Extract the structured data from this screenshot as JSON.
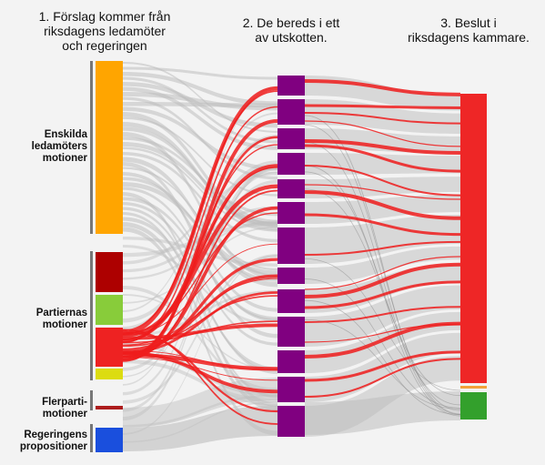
{
  "titles": {
    "col1": [
      "1. Förslag kommer från",
      "riksdagens ledamöter",
      "och regeringen"
    ],
    "col2": [
      "2. De bereds i ett",
      "av utskotten."
    ],
    "col3": [
      "3. Beslut i",
      "riksdagens kammare."
    ]
  },
  "sources": {
    "enskilda": [
      "Enskilda",
      "ledamöters",
      "motioner"
    ],
    "partiernas": [
      "Partiernas",
      "motioner"
    ],
    "flerparti": [
      "Flerparti-",
      "motioner"
    ],
    "regeringens": [
      "Regeringens",
      "propositioner"
    ]
  },
  "colors": {
    "background": "#f3f3f3",
    "enskilda": "#FFA500",
    "partiernas_1": "#AD0000",
    "partiernas_2": "#88CC3A",
    "partiernas_3": "#EE2222",
    "partiernas_4": "#DCDC10",
    "flerparti": "#AD1C1C",
    "regeringens": "#1A4FDD",
    "committee": "#800080",
    "decision_main": "#EE2626",
    "decision_mid": "#F2A13A",
    "decision_small": "#33A02C",
    "flow_gray": "#BEBEBE",
    "flow_red": "#EE1C1C"
  }
}
